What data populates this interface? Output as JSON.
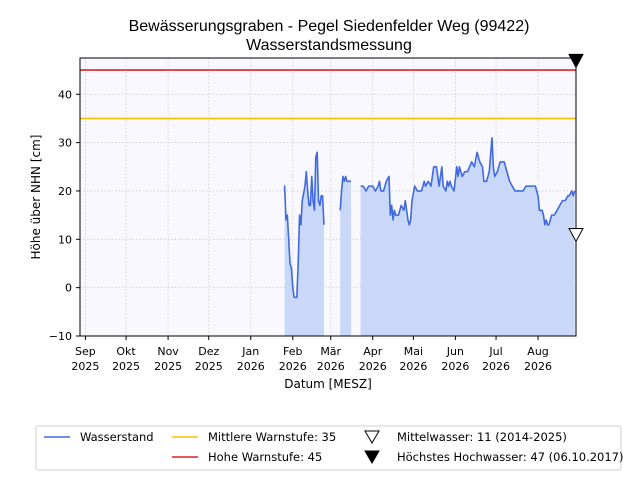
{
  "chart_data": {
    "type": "line",
    "title": "Bewässerungsgraben - Pegel Siedenfelder Weg (99422)",
    "subtitle": "Wasserstandsmessung",
    "xlabel": "Datum [MESZ]",
    "ylabel": "Höhe über NHN [cm]",
    "xlim": [
      "2025-08-28",
      "2026-08-29"
    ],
    "ylim": [
      -10,
      47.5
    ],
    "grid": true,
    "legend_position": "bottom",
    "x_ticks": [
      {
        "date": "2025-09-01",
        "month": "Sep",
        "year": "2025"
      },
      {
        "date": "2025-10-01",
        "month": "Okt",
        "year": "2025"
      },
      {
        "date": "2025-11-01",
        "month": "Nov",
        "year": "2025"
      },
      {
        "date": "2025-12-01",
        "month": "Dez",
        "year": "2025"
      },
      {
        "date": "2026-01-01",
        "month": "Jan",
        "year": "2026"
      },
      {
        "date": "2026-02-01",
        "month": "Feb",
        "year": "2026"
      },
      {
        "date": "2026-03-01",
        "month": "Mär",
        "year": "2026"
      },
      {
        "date": "2026-04-01",
        "month": "Apr",
        "year": "2026"
      },
      {
        "date": "2026-05-01",
        "month": "Mai",
        "year": "2026"
      },
      {
        "date": "2026-06-01",
        "month": "Jun",
        "year": "2026"
      },
      {
        "date": "2026-07-01",
        "month": "Jul",
        "year": "2026"
      },
      {
        "date": "2026-08-01",
        "month": "Aug",
        "year": "2026"
      }
    ],
    "y_ticks": [
      -10,
      0,
      10,
      20,
      30,
      40
    ],
    "colors": {
      "line": "#4169e1",
      "fill": "#c9d8f8",
      "plot_bg": "#f8f8fe",
      "mittlere_warnstufe": "#ffbf00",
      "hohe_warnstufe": "#d62728"
    },
    "reference_lines": [
      {
        "name": "Mittlere Warnstufe",
        "value": 35,
        "color": "#ffbf00"
      },
      {
        "name": "Hohe Warnstufe",
        "value": 45,
        "color": "#d62728"
      }
    ],
    "markers": [
      {
        "name": "Mittelwasser",
        "value": 11,
        "style": "open-triangle-down"
      },
      {
        "name": "Höchstes Hochwasser",
        "value": 47,
        "style": "filled-triangle-down"
      }
    ],
    "series": [
      {
        "name": "Wasserstand",
        "segments": [
          [
            [
              "2026-01-26",
              20
            ],
            [
              "2026-01-26",
              21
            ],
            [
              "2026-01-27",
              14
            ],
            [
              "2026-01-28",
              15
            ],
            [
              "2026-01-29",
              10
            ],
            [
              "2026-01-30",
              5
            ],
            [
              "2026-01-31",
              4
            ],
            [
              "2026-02-01",
              0
            ],
            [
              "2026-02-02",
              -2
            ],
            [
              "2026-02-04",
              -2
            ],
            [
              "2026-02-05",
              5
            ],
            [
              "2026-02-06",
              15
            ],
            [
              "2026-02-07",
              13
            ],
            [
              "2026-02-08",
              18
            ],
            [
              "2026-02-10",
              21
            ],
            [
              "2026-02-11",
              24
            ],
            [
              "2026-02-12",
              20
            ],
            [
              "2026-02-13",
              17
            ],
            [
              "2026-02-14",
              17
            ],
            [
              "2026-02-15",
              23
            ],
            [
              "2026-02-16",
              18
            ],
            [
              "2026-02-17",
              16
            ],
            [
              "2026-02-18",
              27
            ],
            [
              "2026-02-19",
              28
            ],
            [
              "2026-02-20",
              18
            ],
            [
              "2026-02-21",
              17
            ],
            [
              "2026-02-22",
              19
            ],
            [
              "2026-02-23",
              19
            ],
            [
              "2026-02-24",
              13
            ]
          ],
          [
            [
              "2026-03-08",
              16
            ],
            [
              "2026-03-09",
              20
            ],
            [
              "2026-03-10",
              23
            ],
            [
              "2026-03-11",
              22
            ],
            [
              "2026-03-12",
              23
            ],
            [
              "2026-03-13",
              22
            ],
            [
              "2026-03-16",
              22
            ]
          ],
          [
            [
              "2026-03-23",
              21
            ],
            [
              "2026-03-25",
              21
            ],
            [
              "2026-03-27",
              20
            ],
            [
              "2026-03-29",
              21
            ],
            [
              "2026-04-01",
              21
            ],
            [
              "2026-04-03",
              20
            ],
            [
              "2026-04-05",
              21
            ],
            [
              "2026-04-06",
              22
            ],
            [
              "2026-04-07",
              20
            ],
            [
              "2026-04-09",
              20
            ],
            [
              "2026-04-11",
              22
            ],
            [
              "2026-04-13",
              23
            ],
            [
              "2026-04-14",
              15
            ],
            [
              "2026-04-15",
              17
            ],
            [
              "2026-04-16",
              14
            ],
            [
              "2026-04-17",
              16
            ],
            [
              "2026-04-18",
              15
            ],
            [
              "2026-04-20",
              15
            ],
            [
              "2026-04-22",
              17
            ],
            [
              "2026-04-24",
              16
            ],
            [
              "2026-04-25",
              18
            ],
            [
              "2026-04-27",
              14
            ],
            [
              "2026-04-28",
              13
            ],
            [
              "2026-04-29",
              14
            ],
            [
              "2026-04-30",
              18
            ],
            [
              "2026-05-02",
              21
            ],
            [
              "2026-05-04",
              20
            ],
            [
              "2026-05-07",
              20
            ],
            [
              "2026-05-09",
              22
            ],
            [
              "2026-05-10",
              21
            ],
            [
              "2026-05-12",
              22
            ],
            [
              "2026-05-14",
              21
            ],
            [
              "2026-05-16",
              25
            ],
            [
              "2026-05-18",
              25
            ],
            [
              "2026-05-20",
              21
            ],
            [
              "2026-05-22",
              25
            ],
            [
              "2026-05-23",
              21
            ],
            [
              "2026-05-25",
              20
            ],
            [
              "2026-05-26",
              22
            ],
            [
              "2026-05-27",
              21
            ],
            [
              "2026-05-28",
              22
            ],
            [
              "2026-05-29",
              21
            ],
            [
              "2026-05-31",
              20
            ],
            [
              "2026-06-02",
              25
            ],
            [
              "2026-06-03",
              23
            ],
            [
              "2026-06-04",
              25
            ],
            [
              "2026-06-06",
              23
            ],
            [
              "2026-06-08",
              24
            ],
            [
              "2026-06-10",
              24
            ],
            [
              "2026-06-13",
              26
            ],
            [
              "2026-06-15",
              25
            ],
            [
              "2026-06-17",
              28
            ],
            [
              "2026-06-19",
              26
            ],
            [
              "2026-06-21",
              25
            ],
            [
              "2026-06-22",
              22
            ],
            [
              "2026-06-24",
              22
            ],
            [
              "2026-06-26",
              24
            ],
            [
              "2026-06-28",
              31
            ],
            [
              "2026-06-29",
              25
            ],
            [
              "2026-06-30",
              23
            ],
            [
              "2026-07-02",
              24
            ],
            [
              "2026-07-04",
              26
            ],
            [
              "2026-07-07",
              26
            ],
            [
              "2026-07-09",
              24
            ],
            [
              "2026-07-11",
              22
            ],
            [
              "2026-07-13",
              21
            ],
            [
              "2026-07-15",
              20
            ],
            [
              "2026-07-18",
              20
            ],
            [
              "2026-07-21",
              20
            ],
            [
              "2026-07-23",
              21
            ],
            [
              "2026-07-27",
              21
            ],
            [
              "2026-07-30",
              21
            ],
            [
              "2026-08-01",
              19
            ],
            [
              "2026-08-02",
              16
            ],
            [
              "2026-08-04",
              16
            ],
            [
              "2026-08-05",
              15
            ],
            [
              "2026-08-06",
              13
            ],
            [
              "2026-08-07",
              14
            ],
            [
              "2026-08-08",
              13
            ],
            [
              "2026-08-09",
              13
            ],
            [
              "2026-08-11",
              15
            ],
            [
              "2026-08-13",
              15
            ],
            [
              "2026-08-15",
              16
            ],
            [
              "2026-08-17",
              17
            ],
            [
              "2026-08-19",
              18
            ],
            [
              "2026-08-21",
              18
            ],
            [
              "2026-08-23",
              19
            ],
            [
              "2026-08-24",
              19
            ],
            [
              "2026-08-26",
              20
            ],
            [
              "2026-08-27",
              19
            ],
            [
              "2026-08-28",
              20
            ]
          ]
        ]
      }
    ],
    "legend": {
      "items": [
        {
          "key": "wasserstand",
          "label": "Wasserstand"
        },
        {
          "key": "mittlere",
          "label": "Mittlere Warnstufe: 35"
        },
        {
          "key": "mittelwasser",
          "label": "Mittelwasser: 11 (2014-2025)"
        },
        {
          "key": "hohe",
          "label": "Hohe Warnstufe: 45"
        },
        {
          "key": "hochwasser",
          "label": "Höchstes Hochwasser: 47 (06.10.2017)"
        }
      ]
    }
  }
}
